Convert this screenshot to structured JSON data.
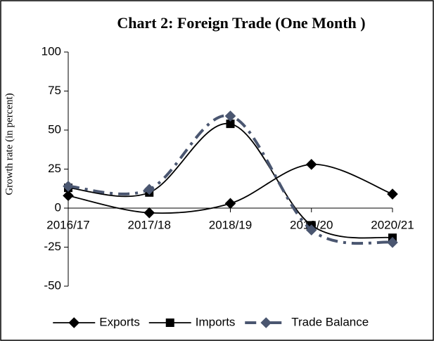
{
  "chart_data": {
    "type": "line",
    "title": "Chart 2: Foreign Trade (One Month )",
    "y_label": "Growth rate (in percent)",
    "categories": [
      "2016/17",
      "2017/18",
      "2018/19",
      "2019/20",
      "2020/21"
    ],
    "series": [
      {
        "name": "Exports",
        "color": "#000000",
        "marker": "diamond",
        "dashed": false,
        "values": [
          8,
          -3,
          3,
          28,
          9
        ]
      },
      {
        "name": "Imports",
        "color": "#000000",
        "marker": "square",
        "dashed": false,
        "values": [
          13,
          10,
          54,
          -11,
          -19
        ]
      },
      {
        "name": "Trade Balance",
        "color": "#4a5670",
        "marker": "diamond",
        "dashed": true,
        "values": [
          14,
          12,
          59,
          -14,
          -22
        ]
      }
    ],
    "ylim": [
      -50,
      100
    ],
    "yticks": [
      -50,
      -25,
      0,
      25,
      50,
      75,
      100
    ],
    "smooth": true,
    "legend": "bottom"
  }
}
